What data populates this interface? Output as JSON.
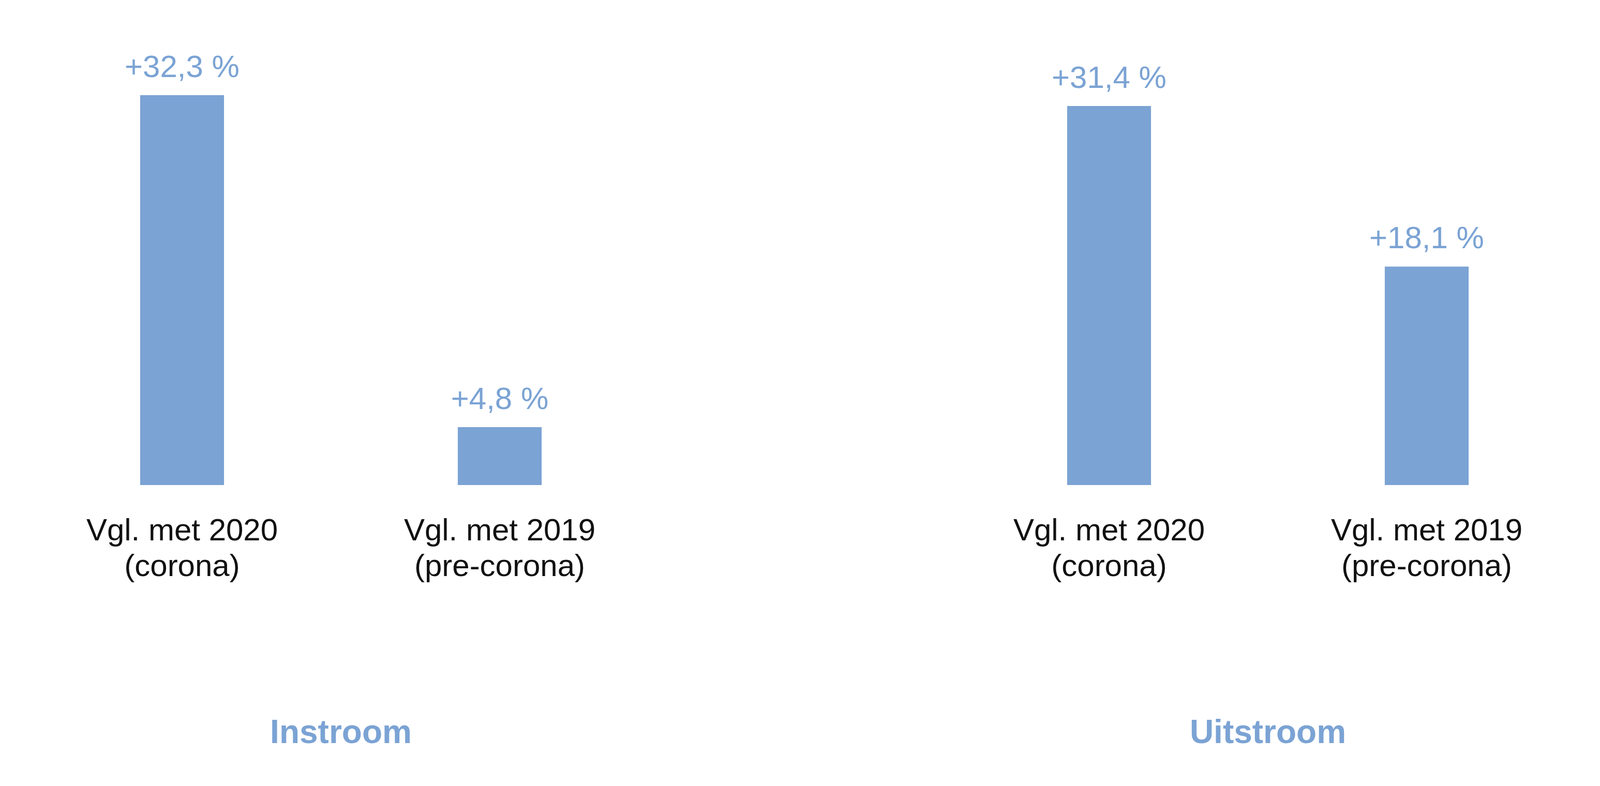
{
  "chart_data": [
    {
      "type": "bar",
      "title": "Instroom",
      "categories": [
        [
          "Vgl. met 2020",
          "(corona)"
        ],
        [
          "Vgl. met 2019",
          "(pre-corona)"
        ]
      ],
      "values": [
        32.3,
        4.8
      ],
      "value_labels": [
        "+32,3 %",
        "+4,8 %"
      ],
      "color": "#7ba3d4",
      "ylim": [
        0,
        35
      ],
      "grid": false,
      "data_labels": true,
      "tick_labels": "x"
    },
    {
      "type": "bar",
      "title": "Uitstroom",
      "categories": [
        [
          "Vgl. met 2020",
          "(corona)"
        ],
        [
          "Vgl. met 2019",
          "(pre-corona)"
        ]
      ],
      "values": [
        31.4,
        18.1
      ],
      "value_labels": [
        "+31,4 %",
        "+18,1 %"
      ],
      "color": "#7ba3d4",
      "ylim": [
        0,
        35
      ],
      "grid": false,
      "data_labels": true,
      "tick_labels": "x"
    }
  ]
}
